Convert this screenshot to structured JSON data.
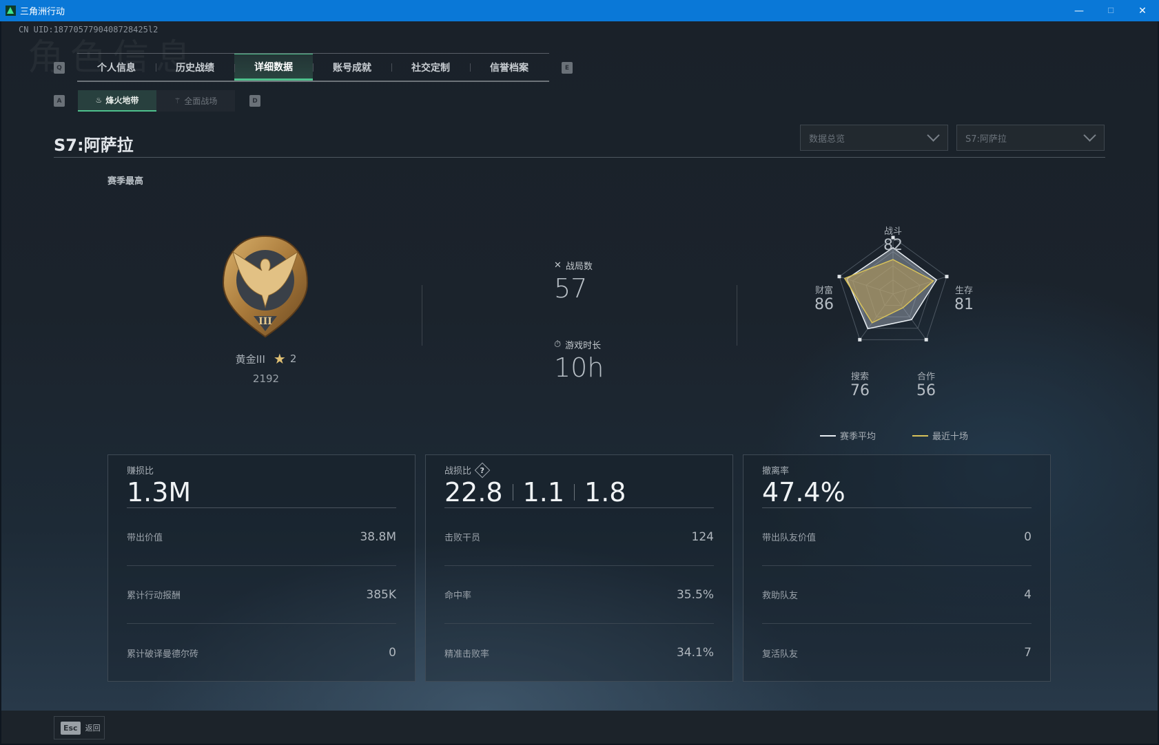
{
  "window": {
    "title": "三角洲行动",
    "minimize": "—",
    "maximize": "☐",
    "close": "✕"
  },
  "header": {
    "uid": "CN UID:1877057790408728425l2",
    "ghost_title": "角色信息"
  },
  "tabs": {
    "prev_key": "Q",
    "next_key": "E",
    "items": [
      {
        "label": "个人信息"
      },
      {
        "label": "历史战绩"
      },
      {
        "label": "详细数据",
        "active": true
      },
      {
        "label": "账号成就"
      },
      {
        "label": "社交定制"
      },
      {
        "label": "信誉档案"
      }
    ]
  },
  "subtabs": {
    "prev_key": "A",
    "next_key": "D",
    "items": [
      {
        "label": "烽火地带",
        "icon": "♨",
        "active": true
      },
      {
        "label": "全面战场",
        "icon": "⚚"
      }
    ]
  },
  "page": {
    "title": "S7:阿萨拉"
  },
  "filters": {
    "view": "数据总览",
    "season": "S7:阿萨拉"
  },
  "rank": {
    "section_label": "赛季最高",
    "name": "黄金III",
    "stars": "2",
    "score": "2192",
    "medal_numeral": "III"
  },
  "summary": {
    "matches_label": "战局数",
    "matches": "57",
    "playtime_label": "游戏时长",
    "playtime": "10h"
  },
  "chart_data": {
    "type": "radar",
    "axes": [
      "战斗",
      "生存",
      "合作",
      "搜索",
      "财富"
    ],
    "range": [
      0,
      100
    ],
    "labels_values": [
      "82",
      "81",
      "56",
      "76",
      "86"
    ],
    "series": [
      {
        "name": "赛季平均",
        "values": [
          82,
          81,
          56,
          76,
          86
        ],
        "color": "#e8edf2"
      },
      {
        "name": "最近十场",
        "values": [
          61,
          75,
          30,
          63,
          90
        ],
        "color": "#d9c35a"
      }
    ],
    "legend": "bottom"
  },
  "cards": [
    {
      "label": "赚损比",
      "big": [
        "1.3M"
      ],
      "rows": [
        {
          "label": "带出价值",
          "value": "38.8M"
        },
        {
          "label": "累计行动报酬",
          "value": "385K"
        },
        {
          "label": "累计破译曼德尔砖",
          "value": "0"
        }
      ]
    },
    {
      "label": "战损比",
      "help": "?",
      "big": [
        "22.8",
        "1.1",
        "1.8"
      ],
      "rows": [
        {
          "label": "击败干员",
          "value": "124"
        },
        {
          "label": "命中率",
          "value": "35.5%"
        },
        {
          "label": "精准击败率",
          "value": "34.1%"
        }
      ]
    },
    {
      "label": "撤离率",
      "big": [
        "47.4%"
      ],
      "rows": [
        {
          "label": "带出队友价值",
          "value": "0"
        },
        {
          "label": "救助队友",
          "value": "4"
        },
        {
          "label": "复活队友",
          "value": "7"
        }
      ]
    }
  ],
  "footer": {
    "esc_key": "Esc",
    "back_label": "返回"
  }
}
